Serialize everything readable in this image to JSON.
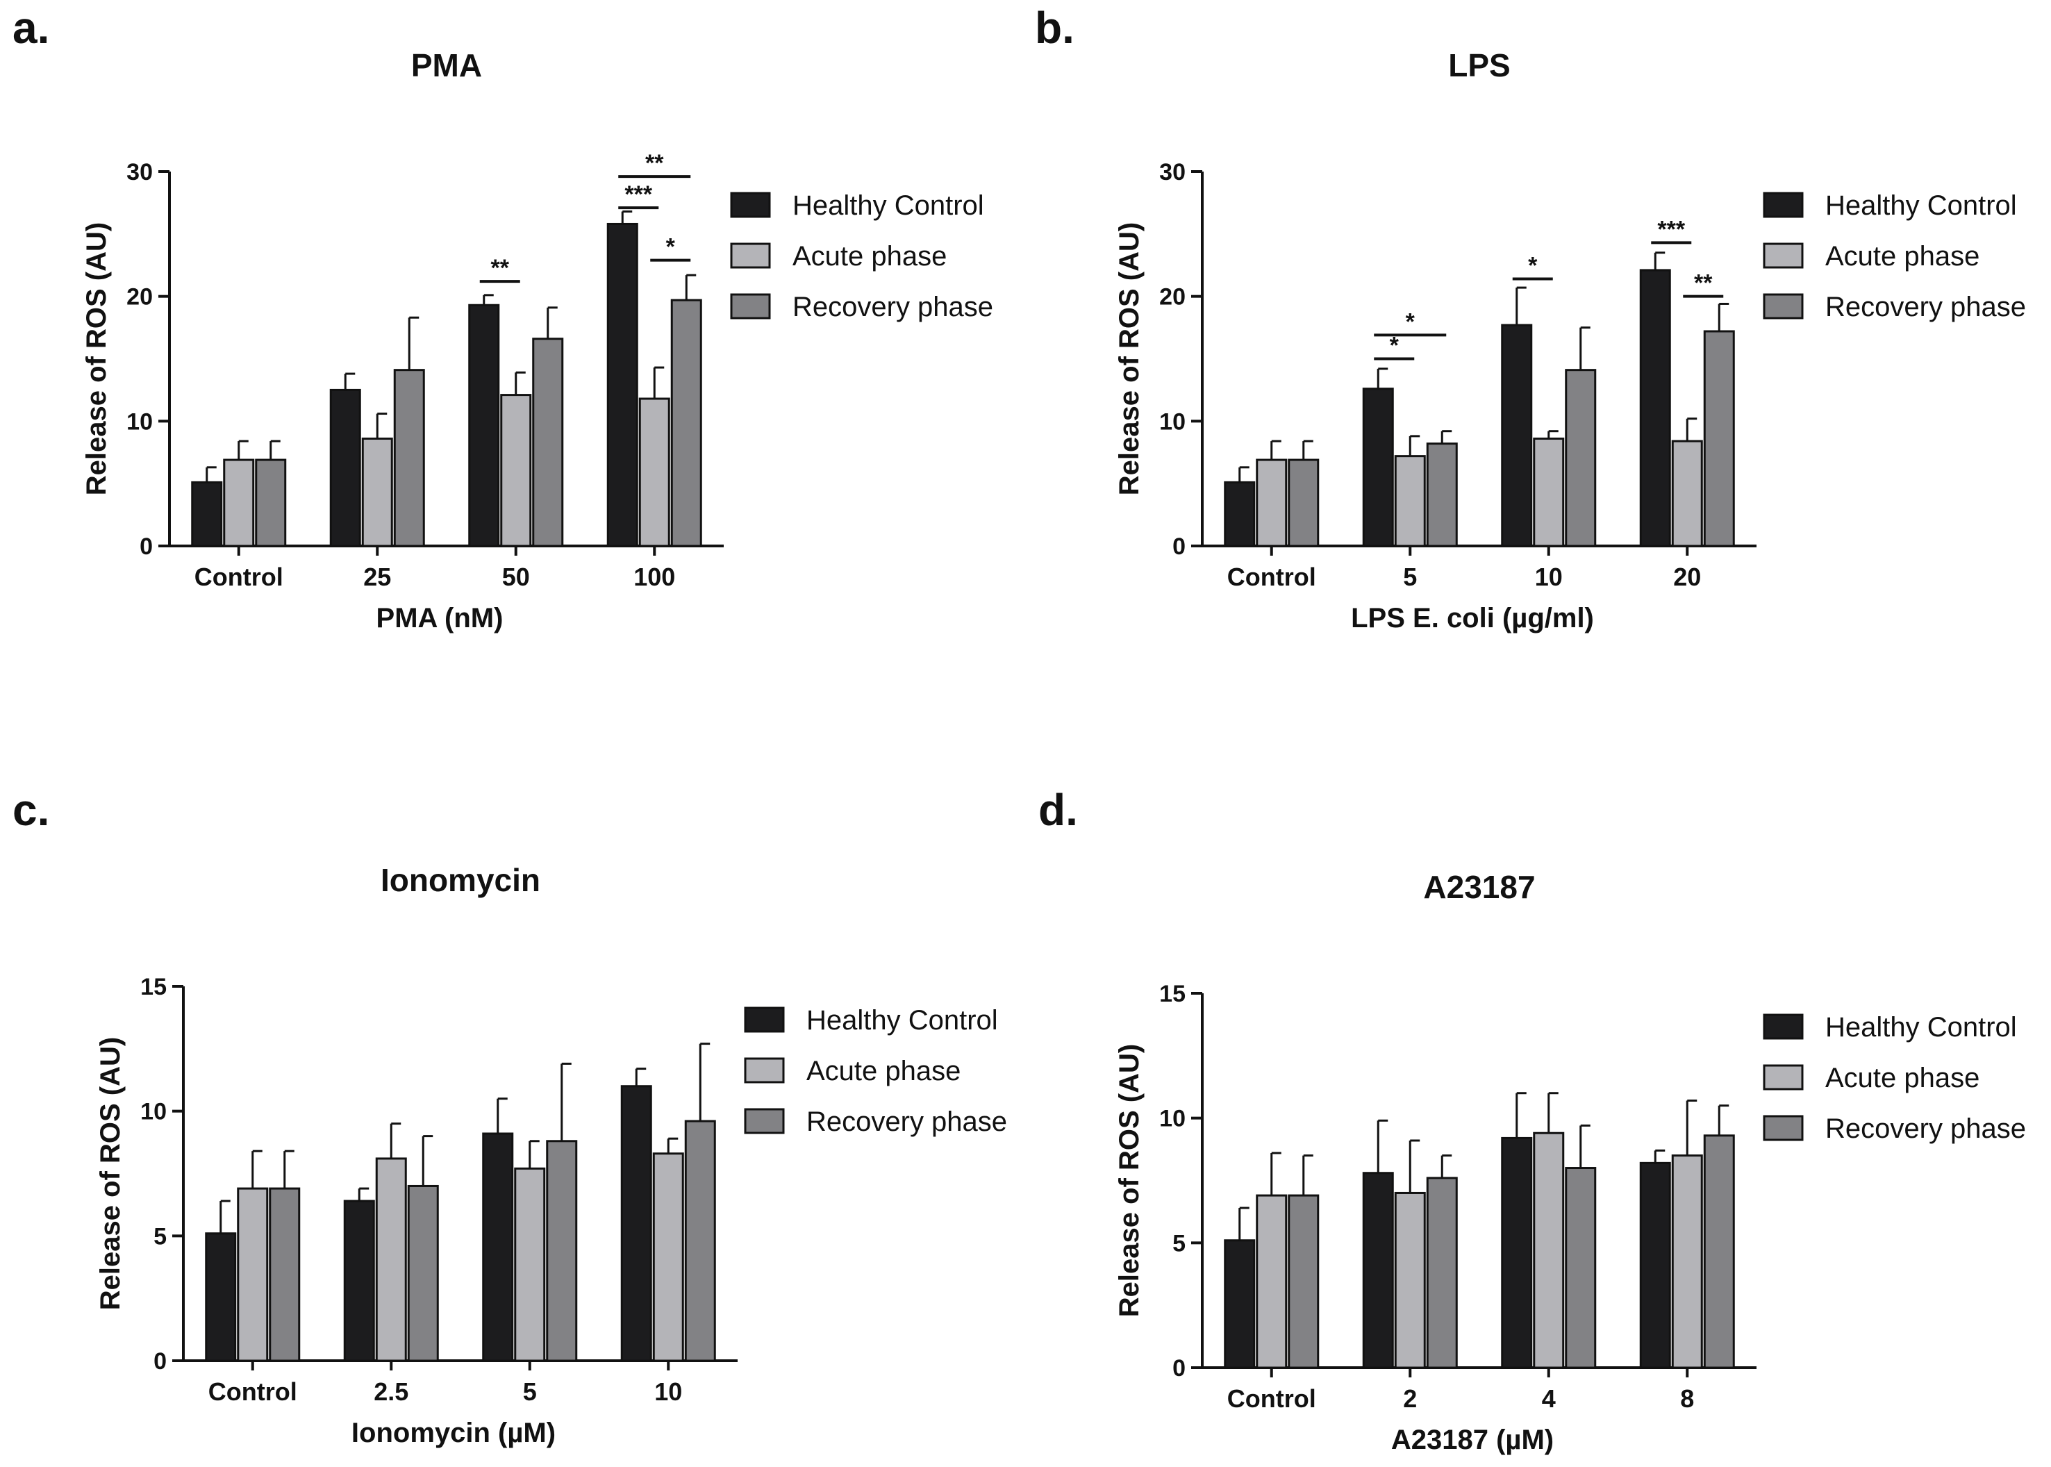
{
  "figure": {
    "colors": {
      "healthy": "#1c1c1e",
      "acute": "#b4b4b8",
      "recovery": "#828285"
    },
    "legend": [
      "Healthy Control",
      "Acute phase",
      "Recovery phase"
    ]
  },
  "chart_data": [
    {
      "panel": "a.",
      "type": "bar",
      "title": "PMA",
      "xlabel": "PMA (nM)",
      "ylabel": "Release of ROS (AU)",
      "ylim": [
        0,
        30
      ],
      "yticks": [
        0,
        10,
        20,
        30
      ],
      "categories": [
        "Control",
        "25",
        "50",
        "100"
      ],
      "series": [
        {
          "name": "Healthy Control",
          "values": [
            5.1,
            12.5,
            19.3,
            25.8
          ],
          "errors": [
            1.2,
            1.3,
            0.8,
            1.0
          ]
        },
        {
          "name": "Acute phase",
          "values": [
            6.9,
            8.6,
            12.1,
            11.8
          ],
          "errors": [
            1.5,
            2.0,
            1.8,
            2.5
          ]
        },
        {
          "name": "Recovery phase",
          "values": [
            6.9,
            14.1,
            16.6,
            19.7
          ],
          "errors": [
            1.5,
            4.2,
            2.5,
            2.0
          ]
        }
      ],
      "significance": [
        {
          "category": 2,
          "from": 0,
          "to": 1,
          "label": "**",
          "level": 21.2
        },
        {
          "category": 3,
          "from": 0,
          "to": 1,
          "label": "***",
          "level": 27.1
        },
        {
          "category": 3,
          "from": 0,
          "to": 2,
          "label": "**",
          "level": 29.6
        },
        {
          "category": 3,
          "from": 1,
          "to": 2,
          "label": "*",
          "level": 22.9
        }
      ]
    },
    {
      "panel": "b.",
      "type": "bar",
      "title": "LPS",
      "xlabel": "LPS E. coli (µg/ml)",
      "ylabel": "Release of ROS (AU)",
      "ylim": [
        0,
        30
      ],
      "yticks": [
        0,
        10,
        20,
        30
      ],
      "categories": [
        "Control",
        "5",
        "10",
        "20"
      ],
      "series": [
        {
          "name": "Healthy Control",
          "values": [
            5.1,
            12.6,
            17.7,
            22.1
          ],
          "errors": [
            1.2,
            1.6,
            3.0,
            1.4
          ]
        },
        {
          "name": "Acute phase",
          "values": [
            6.9,
            7.2,
            8.6,
            8.4
          ],
          "errors": [
            1.5,
            1.6,
            0.6,
            1.8
          ]
        },
        {
          "name": "Recovery phase",
          "values": [
            6.9,
            8.2,
            14.1,
            17.2
          ],
          "errors": [
            1.5,
            1.0,
            3.4,
            2.2
          ]
        }
      ],
      "significance": [
        {
          "category": 1,
          "from": 0,
          "to": 1,
          "label": "*",
          "level": 15.0
        },
        {
          "category": 1,
          "from": 0,
          "to": 2,
          "label": "*",
          "level": 16.9
        },
        {
          "category": 2,
          "from": 0,
          "to": 1,
          "label": "*",
          "level": 21.4
        },
        {
          "category": 3,
          "from": 0,
          "to": 1,
          "label": "***",
          "level": 24.3
        },
        {
          "category": 3,
          "from": 1,
          "to": 2,
          "label": "**",
          "level": 20.0
        }
      ]
    },
    {
      "panel": "c.",
      "type": "bar",
      "title": "Ionomycin",
      "xlabel": "Ionomycin (µM)",
      "ylabel": "Release of ROS (AU)",
      "ylim": [
        0,
        15
      ],
      "yticks": [
        0,
        5,
        10,
        15
      ],
      "categories": [
        "Control",
        "2.5",
        "5",
        "10"
      ],
      "series": [
        {
          "name": "Healthy Control",
          "values": [
            5.1,
            6.4,
            9.1,
            11.0
          ],
          "errors": [
            1.3,
            0.5,
            1.4,
            0.7
          ]
        },
        {
          "name": "Acute phase",
          "values": [
            6.9,
            8.1,
            7.7,
            8.3
          ],
          "errors": [
            1.5,
            1.4,
            1.1,
            0.6
          ]
        },
        {
          "name": "Recovery phase",
          "values": [
            6.9,
            7.0,
            8.8,
            9.6
          ],
          "errors": [
            1.5,
            2.0,
            3.1,
            3.1
          ]
        }
      ],
      "significance": []
    },
    {
      "panel": "d.",
      "type": "bar",
      "title": "A23187",
      "xlabel": "A23187 (µM)",
      "ylabel": "Release of ROS (AU)",
      "ylim": [
        0,
        15
      ],
      "yticks": [
        0,
        5,
        10,
        15
      ],
      "categories": [
        "Control",
        "2",
        "4",
        "8"
      ],
      "series": [
        {
          "name": "Healthy Control",
          "values": [
            5.1,
            7.8,
            9.2,
            8.2
          ],
          "errors": [
            1.3,
            2.1,
            1.8,
            0.5
          ]
        },
        {
          "name": "Acute phase",
          "values": [
            6.9,
            7.0,
            9.4,
            8.5
          ],
          "errors": [
            1.7,
            2.1,
            1.6,
            2.2
          ]
        },
        {
          "name": "Recovery phase",
          "values": [
            6.9,
            7.6,
            8.0,
            9.3
          ],
          "errors": [
            1.6,
            0.9,
            1.7,
            1.2
          ]
        }
      ],
      "significance": []
    }
  ]
}
